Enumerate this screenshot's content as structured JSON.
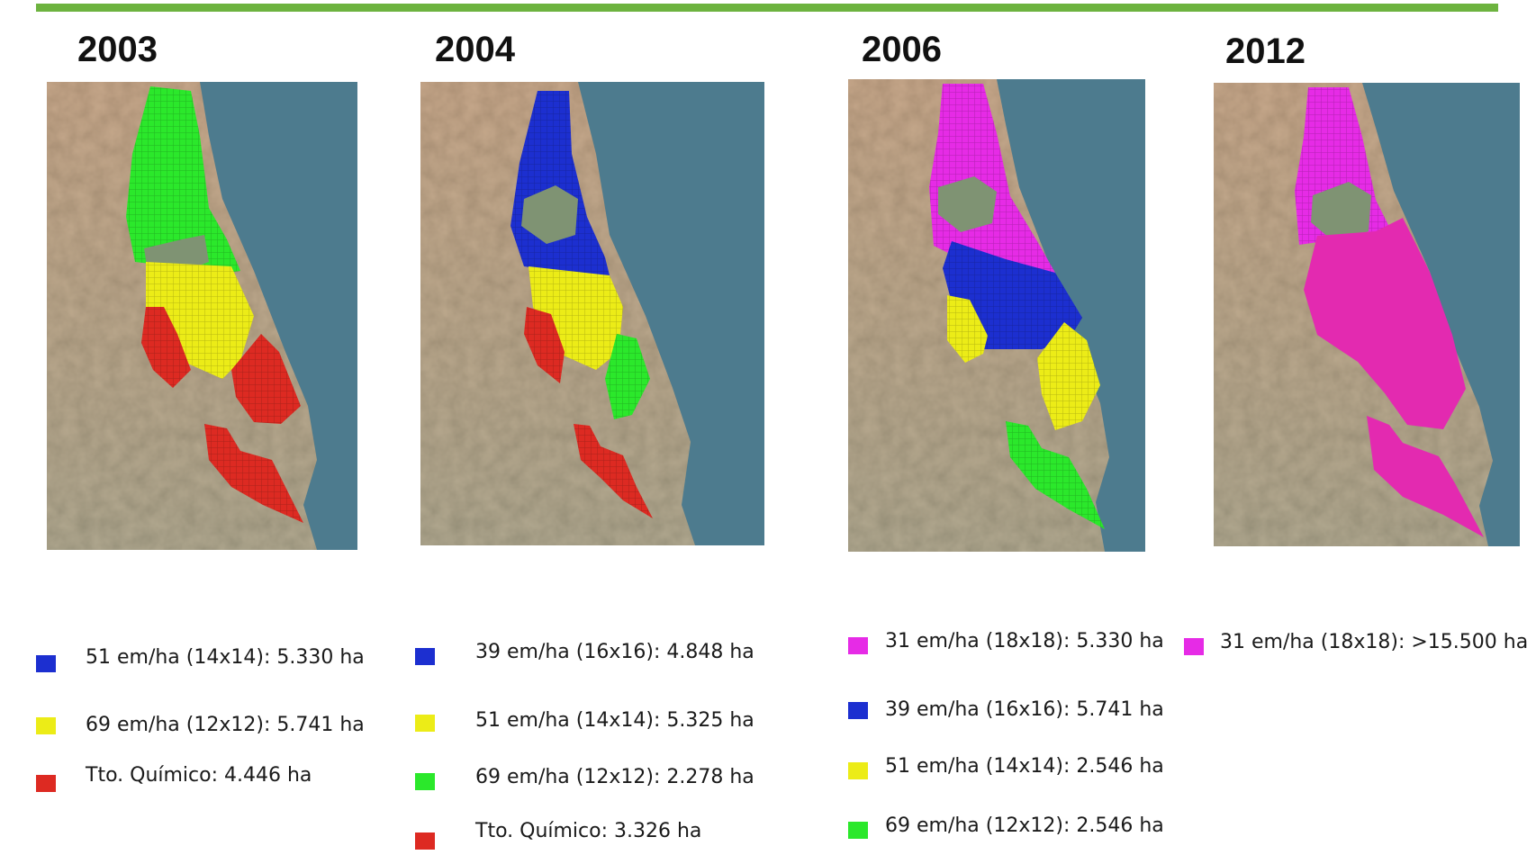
{
  "colors": {
    "header_bar": "#6db33f",
    "sea": "#4d7b8e",
    "lake": "#7f9373",
    "blue": "#1c2fd0",
    "yellow": "#ecec17",
    "green": "#2be82b",
    "red": "#dd2a22",
    "magenta": "#e62be6",
    "pink": "#e32ab0"
  },
  "panels": [
    {
      "year": "2003",
      "zones": [
        "green-north",
        "yellow-center",
        "red-west",
        "red-east",
        "red-south"
      ],
      "legend": [
        {
          "color": "#1c2fd0",
          "swatch_name": "blue",
          "text": "51 em/ha (14x14): 5.330 ha"
        },
        {
          "color": "#ecec17",
          "swatch_name": "yellow",
          "text": "69 em/ha (12x12): 5.741 ha"
        },
        {
          "color": "#dd2a22",
          "swatch_name": "red",
          "text": "Tto. Químico:  4.446 ha"
        }
      ]
    },
    {
      "year": "2004",
      "zones": [
        "blue-north",
        "yellow-center",
        "red-west",
        "green-east",
        "red-south"
      ],
      "legend": [
        {
          "color": "#1c2fd0",
          "swatch_name": "blue",
          "text": "39 em/ha (16x16): 4.848 ha"
        },
        {
          "color": "#ecec17",
          "swatch_name": "yellow",
          "text": "51 em/ha (14x14): 5.325 ha"
        },
        {
          "color": "#2be82b",
          "swatch_name": "green",
          "text": "69 em/ha (12x12): 2.278 ha"
        },
        {
          "color": "#dd2a22",
          "swatch_name": "red",
          "text": "Tto. Químico:  3.326 ha"
        }
      ]
    },
    {
      "year": "2006",
      "zones": [
        "magenta-north",
        "blue-center",
        "yellow-west",
        "yellow-east",
        "green-south"
      ],
      "legend": [
        {
          "color": "#e62be6",
          "swatch_name": "magenta",
          "text": "31 em/ha (18x18): 5.330 ha"
        },
        {
          "color": "#1c2fd0",
          "swatch_name": "blue",
          "text": "39 em/ha (16x16): 5.741 ha"
        },
        {
          "color": "#ecec17",
          "swatch_name": "yellow",
          "text": "51 em/ha (14x14): 2.546 ha"
        },
        {
          "color": "#2be82b",
          "swatch_name": "green",
          "text": "69 em/ha (12x12): 2.546 ha"
        }
      ]
    },
    {
      "year": "2012",
      "zones": [
        "magenta-north",
        "pink-center",
        "pink-south"
      ],
      "legend": [
        {
          "color": "#e62be6",
          "swatch_name": "magenta",
          "text": "31 em/ha (18x18): >15.500 ha"
        }
      ]
    }
  ]
}
